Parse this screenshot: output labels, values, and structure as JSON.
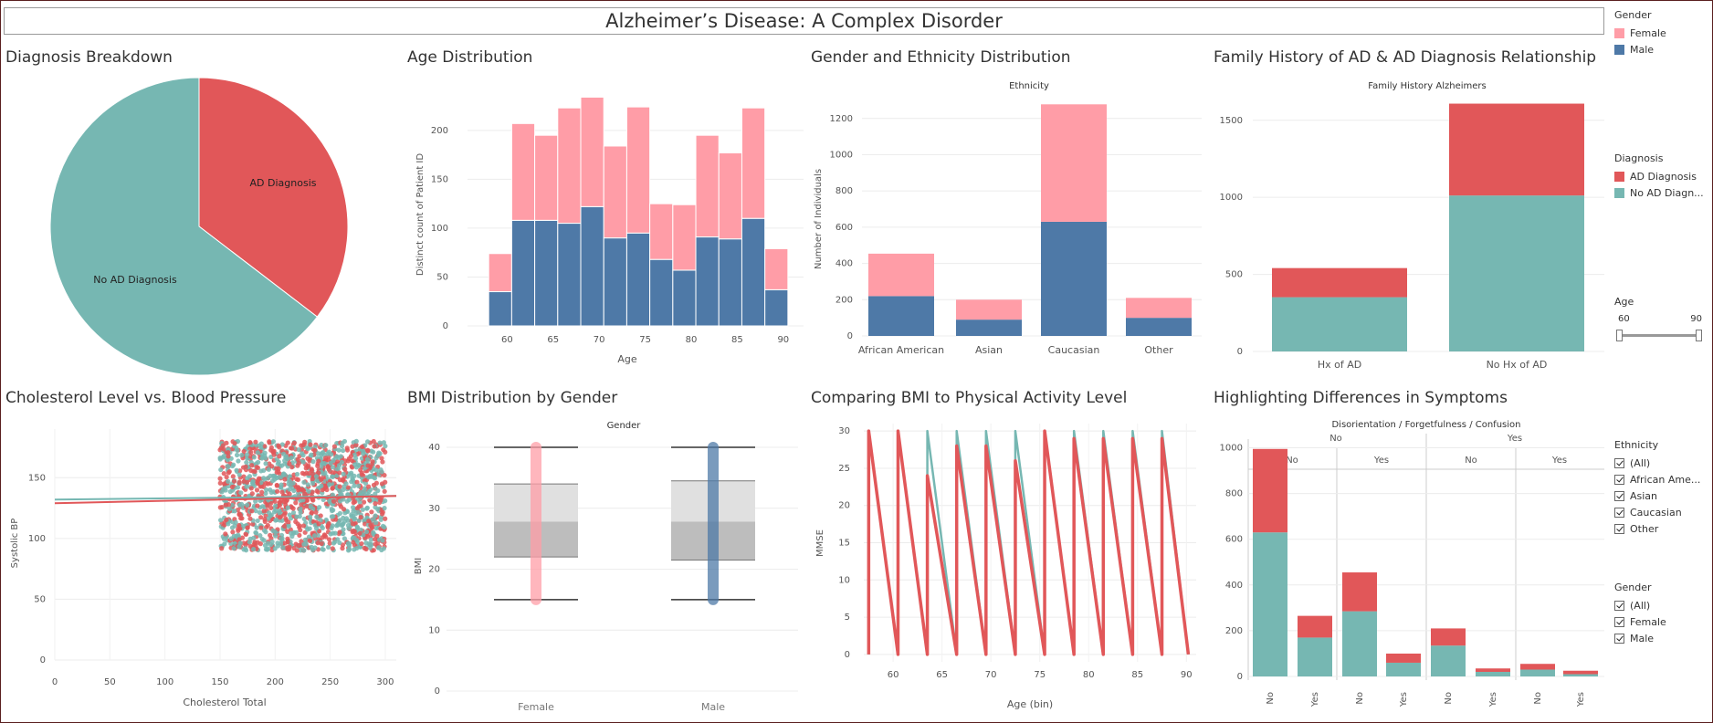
{
  "dashboard": {
    "title": "Alzheimer’s Disease: A Complex Disorder"
  },
  "colors": {
    "female": "#ff9da7",
    "male": "#4e79a7",
    "ad": "#e15759",
    "no_ad": "#76b7b2"
  },
  "panels": {
    "diagnosis": "Diagnosis Breakdown",
    "age": "Age Distribution",
    "gender_eth": "Gender and Ethnicity Distribution",
    "family": "Family History of AD & AD Diagnosis Relationship",
    "chol": "Cholesterol Level vs. Blood Pressure",
    "bmi": "BMI Distribution by Gender",
    "bmi_pa": "Comparing BMI to Physical Activity Level",
    "symptoms": "Highlighting Differences in Symptoms"
  },
  "legends": {
    "gender": {
      "title": "Gender",
      "items": [
        "Female",
        "Male"
      ]
    },
    "diagnosis": {
      "title": "Diagnosis",
      "items": [
        "AD Diagnosis",
        "No AD Diagn..."
      ]
    },
    "age": {
      "title": "Age",
      "min": "60",
      "max": "90"
    },
    "ethnicity_filter": {
      "title": "Ethnicity",
      "items": [
        "(All)",
        "African Ame...",
        "Asian",
        "Caucasian",
        "Other"
      ]
    },
    "gender_filter": {
      "title": "Gender",
      "items": [
        "(All)",
        "Female",
        "Male"
      ]
    }
  },
  "chart_data": [
    {
      "id": "pie",
      "type": "pie",
      "title": "Diagnosis Breakdown",
      "labels": [
        "AD Diagnosis",
        "No AD Diagnosis"
      ],
      "values": [
        35.4,
        64.6
      ]
    },
    {
      "id": "age",
      "type": "bar",
      "title": "Age Distribution",
      "xlabel": "Age",
      "ylabel": "Distinct count of Patient ID",
      "x_ticks": [
        60,
        65,
        70,
        75,
        80,
        85,
        90
      ],
      "ylim": [
        0,
        240
      ],
      "y_ticks": [
        0,
        50,
        100,
        150,
        200
      ],
      "bin_starts": [
        58,
        60.5,
        63,
        65.5,
        68,
        70.5,
        73,
        75.5,
        78,
        80.5,
        83,
        85.5,
        88
      ],
      "series": [
        {
          "name": "Male",
          "values": [
            35,
            108,
            108,
            105,
            122,
            90,
            95,
            68,
            57,
            91,
            89,
            110,
            37
          ]
        },
        {
          "name": "Female",
          "values": [
            39,
            99,
            87,
            118,
            112,
            94,
            129,
            57,
            67,
            104,
            88,
            113,
            42
          ]
        }
      ]
    },
    {
      "id": "gender_eth",
      "type": "bar",
      "title": "Gender and Ethnicity Distribution",
      "header": "Ethnicity",
      "ylabel": "Number of Individuals",
      "categories": [
        "African American",
        "Asian",
        "Caucasian",
        "Other"
      ],
      "ylim": [
        0,
        1350
      ],
      "y_ticks": [
        0,
        200,
        400,
        600,
        800,
        1000,
        1200
      ],
      "series": [
        {
          "name": "Male",
          "values": [
            220,
            90,
            630,
            100
          ]
        },
        {
          "name": "Female",
          "values": [
            234,
            110,
            648,
            110
          ]
        }
      ]
    },
    {
      "id": "family",
      "type": "bar",
      "title": "Family History of AD & AD Diagnosis Relationship",
      "header": "Family History Alzheimers",
      "categories": [
        "Hx of AD",
        "No Hx of AD"
      ],
      "ylim": [
        0,
        1700
      ],
      "y_ticks": [
        0,
        500,
        1000,
        1500
      ],
      "series": [
        {
          "name": "No AD Diagnosis",
          "values": [
            352,
            1012
          ]
        },
        {
          "name": "AD Diagnosis",
          "values": [
            189,
            596
          ]
        }
      ]
    },
    {
      "id": "chol",
      "type": "scatter",
      "title": "Cholesterol Level vs. Blood Pressure",
      "xlabel": "Cholesterol Total",
      "ylabel": "Systolic BP",
      "xlim": [
        0,
        310
      ],
      "ylim": [
        0,
        190
      ],
      "x_ticks": [
        0,
        50,
        100,
        150,
        200,
        250,
        300
      ],
      "y_ticks": [
        0,
        50,
        100,
        150
      ],
      "point_range": {
        "x": [
          150,
          300
        ],
        "y": [
          90,
          180
        ]
      },
      "trend": [
        {
          "name": "No AD Diagnosis",
          "y_at_0": 132,
          "y_at_310": 135
        },
        {
          "name": "AD Diagnosis",
          "y_at_0": 129,
          "y_at_310": 135
        }
      ]
    },
    {
      "id": "bmi",
      "type": "box",
      "title": "BMI Distribution by Gender",
      "header": "Gender",
      "ylabel": "BMI",
      "categories": [
        "Female",
        "Male"
      ],
      "ylim": [
        0,
        43
      ],
      "y_ticks": [
        0,
        10,
        20,
        30,
        40
      ],
      "boxes": [
        {
          "name": "Female",
          "min": 15,
          "q1": 22,
          "median": 27.8,
          "q3": 34,
          "max": 40
        },
        {
          "name": "Male",
          "min": 15,
          "q1": 21.5,
          "median": 27.8,
          "q3": 34.5,
          "max": 40
        }
      ]
    },
    {
      "id": "bmi_pa",
      "type": "line",
      "title": "Comparing BMI to Physical Activity Level",
      "xlabel": "Age (bin)",
      "ylabel": "MMSE",
      "xlim": [
        57,
        91
      ],
      "ylim": [
        -1,
        31
      ],
      "x_ticks": [
        60,
        65,
        70,
        75,
        80,
        85,
        90
      ],
      "y_ticks": [
        0,
        5,
        10,
        15,
        20,
        25,
        30
      ],
      "series": [
        {
          "name": "AD Diagnosis",
          "x": [
            57.5,
            57.5,
            60.5,
            60.5,
            63.5,
            63.5,
            66.5,
            66.5,
            69.5,
            69.5,
            72.5,
            72.5,
            75.5,
            75.5,
            78.5,
            78.5,
            81.5,
            81.5,
            84.5,
            84.5,
            87.5,
            87.5,
            90.2
          ],
          "y": [
            0,
            30,
            0,
            30,
            0,
            24,
            0,
            28,
            0,
            28,
            0,
            26,
            0,
            30,
            0,
            29,
            0,
            29,
            0,
            29,
            0,
            29,
            0
          ]
        },
        {
          "name": "No AD Diagnosis",
          "x": [
            57.5,
            57.5,
            60.5,
            60.5,
            63.5,
            63.5,
            66.5,
            66.5,
            69.5,
            69.5,
            72.5,
            72.5,
            75.5,
            75.5,
            78.5,
            78.5,
            81.5,
            81.5,
            84.5,
            84.5,
            87.5,
            87.5,
            90.2
          ],
          "y": [
            0,
            30,
            0,
            30,
            0,
            30,
            0,
            30,
            0,
            30,
            0,
            30,
            0,
            30,
            0,
            30,
            0,
            30,
            0,
            30,
            0,
            30,
            0
          ]
        }
      ]
    },
    {
      "id": "symptoms",
      "type": "bar",
      "title": "Highlighting Differences in Symptoms",
      "header": "Disorientation / Forgetfulness / Confusion",
      "ylim": [
        0,
        1050
      ],
      "y_ticks": [
        0,
        200,
        400,
        600,
        800,
        1000
      ],
      "top_groups": [
        "No",
        "Yes"
      ],
      "mid_groups": [
        "No",
        "Yes",
        "No",
        "Yes"
      ],
      "categories": [
        "No",
        "Yes",
        "No",
        "Yes",
        "No",
        "Yes",
        "No",
        "Yes"
      ],
      "series": [
        {
          "name": "No AD Diagnosis",
          "values": [
            630,
            170,
            285,
            60,
            135,
            20,
            30,
            10
          ]
        },
        {
          "name": "AD Diagnosis",
          "values": [
            365,
            95,
            170,
            40,
            75,
            15,
            25,
            15
          ]
        }
      ]
    }
  ]
}
